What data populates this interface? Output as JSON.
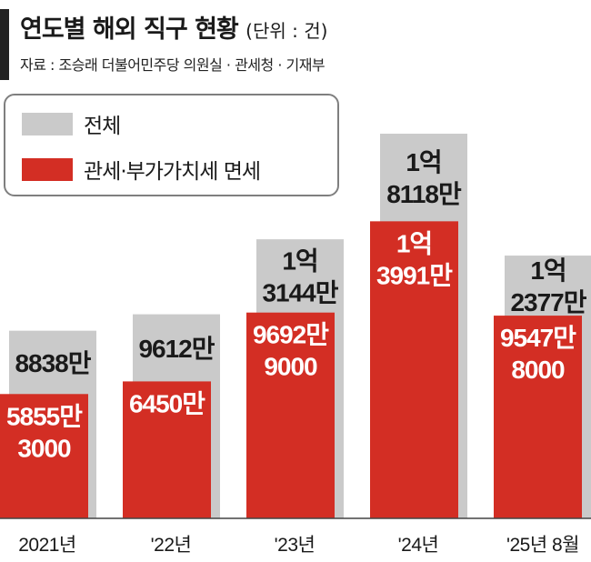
{
  "header": {
    "title": "연도별 해외 직구 현황",
    "unit": "(단위 : 건)",
    "source": "자료 : 조승래 더불어민주당 의원실 · 관세청 · 기재부"
  },
  "colors": {
    "total": "#cacaca",
    "exempt": "#d32e24",
    "text_dark": "#1a1a1a",
    "text_light": "#ffffff"
  },
  "chart_data": {
    "type": "bar",
    "title": "연도별 해외 직구 현황",
    "unit": "건",
    "categories": [
      "2021년",
      "'22년",
      "'23년",
      "'24년",
      "'25년 8월"
    ],
    "series": [
      {
        "name": "전체",
        "values": [
          88380000,
          96120000,
          131440000,
          181180000,
          123770000
        ],
        "labels": [
          [
            "8838만"
          ],
          [
            "9612만"
          ],
          [
            "1억",
            "3144만"
          ],
          [
            "1억",
            "8118만"
          ],
          [
            "1억",
            "2377만"
          ]
        ]
      },
      {
        "name": "관세·부가가치세 면세",
        "values": [
          58553000,
          64500000,
          96929000,
          139910000,
          95478000
        ],
        "labels": [
          [
            "5855만",
            "3000"
          ],
          [
            "6450만"
          ],
          [
            "9692만",
            "9000"
          ],
          [
            "1억",
            "3991만"
          ],
          [
            "9547만",
            "8000"
          ]
        ]
      }
    ],
    "legend": "top-left",
    "grid": false,
    "overlap": true
  }
}
